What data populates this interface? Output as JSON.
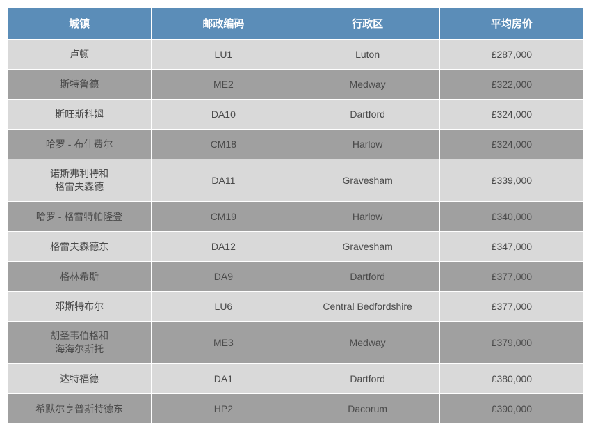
{
  "table": {
    "type": "table",
    "header_bg_color": "#5b8db8",
    "header_text_color": "#ffffff",
    "odd_row_bg": "#d9d9d9",
    "even_row_bg": "#a0a0a0",
    "border_color": "#ffffff",
    "cell_text_color": "#4a4a4a",
    "header_fontsize": 15,
    "cell_fontsize": 14,
    "columns": [
      {
        "label": "城镇",
        "width": "25%"
      },
      {
        "label": "邮政编码",
        "width": "25%"
      },
      {
        "label": "行政区",
        "width": "25%"
      },
      {
        "label": "平均房价",
        "width": "25%"
      }
    ],
    "rows": [
      {
        "town": "卢顿",
        "postcode": "LU1",
        "district": "Luton",
        "price": "£287,000"
      },
      {
        "town": "斯特鲁德",
        "postcode": "ME2",
        "district": "Medway",
        "price": "£322,000"
      },
      {
        "town": "斯旺斯科姆",
        "postcode": "DA10",
        "district": "Dartford",
        "price": "£324,000"
      },
      {
        "town": "哈罗 - 布什费尔",
        "postcode": "CM18",
        "district": "Harlow",
        "price": "£324,000"
      },
      {
        "town": "诺斯弗利特和\n格雷夫森德",
        "postcode": "DA11",
        "district": "Gravesham",
        "price": "£339,000"
      },
      {
        "town": "哈罗 - 格雷特帕隆登",
        "postcode": "CM19",
        "district": "Harlow",
        "price": "£340,000"
      },
      {
        "town": "格雷夫森德东",
        "postcode": "DA12",
        "district": "Gravesham",
        "price": "£347,000"
      },
      {
        "town": "格林希斯",
        "postcode": "DA9",
        "district": "Dartford",
        "price": "£377,000"
      },
      {
        "town": "邓斯特布尔",
        "postcode": "LU6",
        "district": "Central Bedfordshire",
        "price": "£377,000"
      },
      {
        "town": "胡圣韦伯格和\n海海尔斯托",
        "postcode": "ME3",
        "district": "Medway",
        "price": "£379,000"
      },
      {
        "town": "达特福德",
        "postcode": "DA1",
        "district": "Dartford",
        "price": "£380,000"
      },
      {
        "town": "希默尔亨普斯特德东",
        "postcode": "HP2",
        "district": "Dacorum",
        "price": "£390,000"
      }
    ]
  }
}
